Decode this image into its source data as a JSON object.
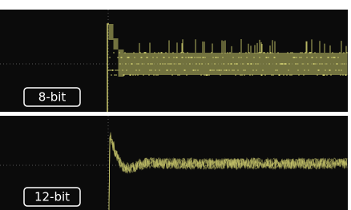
{
  "panels": [
    {
      "label": "8-bit"
    },
    {
      "label": "12-bit"
    }
  ]
}
